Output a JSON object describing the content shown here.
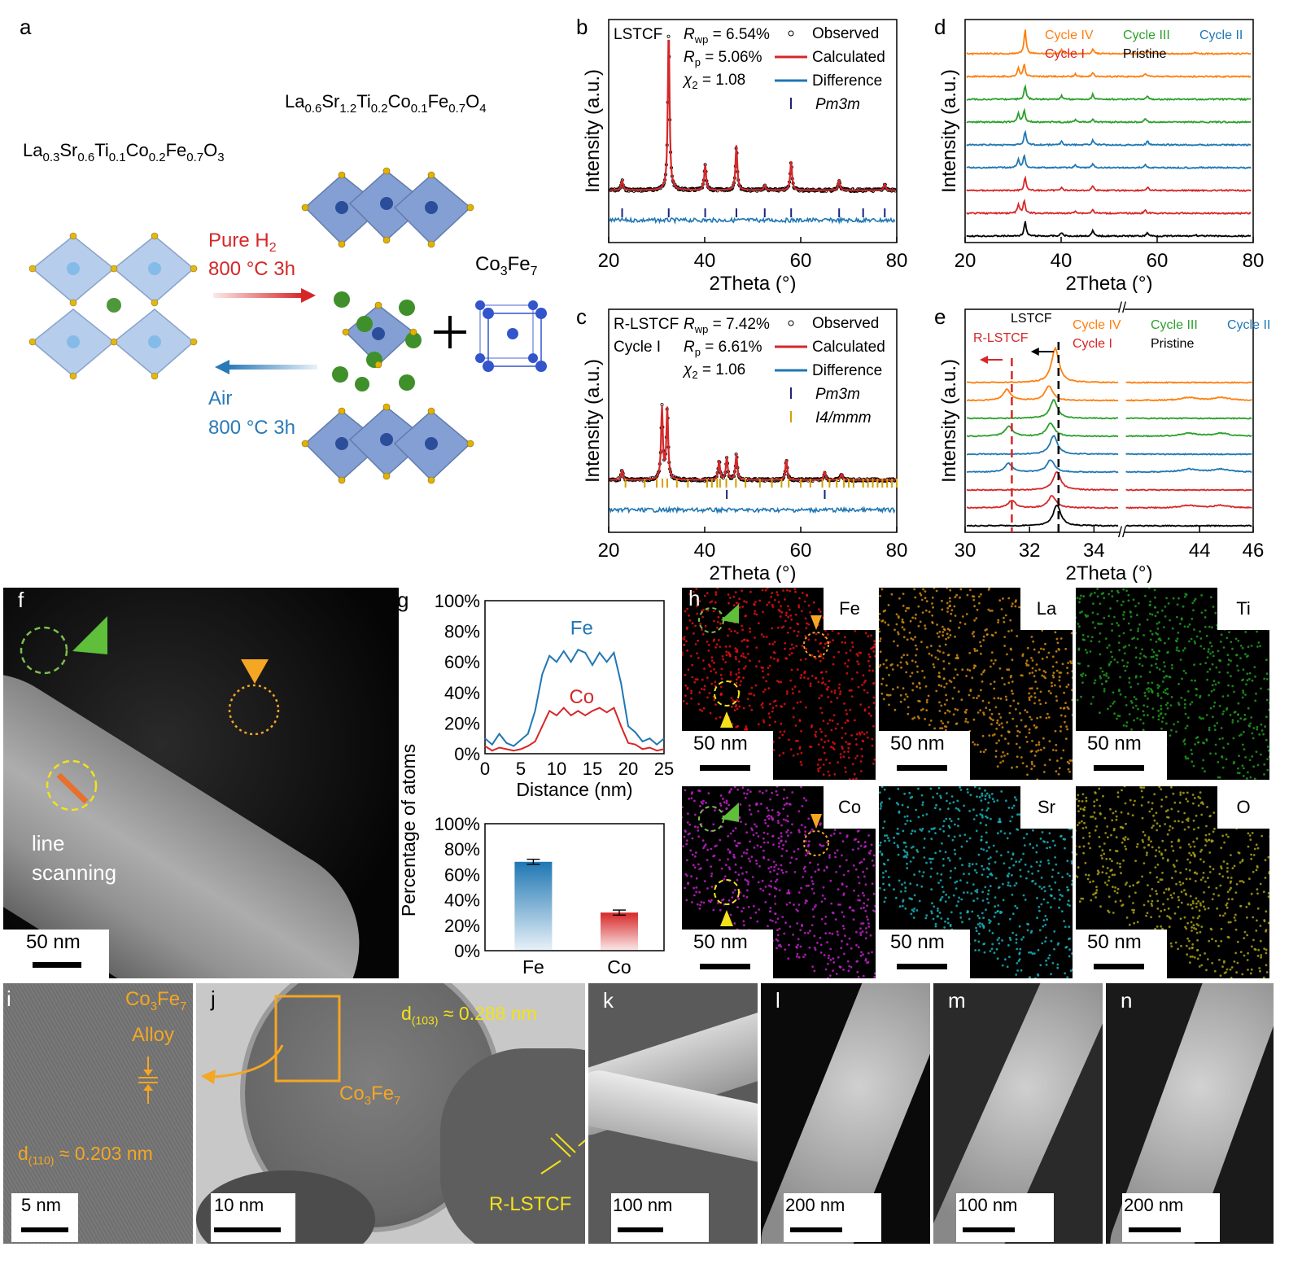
{
  "labels": {
    "a": "a",
    "b": "b",
    "c": "c",
    "d": "d",
    "e": "e",
    "f": "f",
    "g": "g",
    "h": "h",
    "i": "i",
    "j": "j",
    "k": "k",
    "l": "l",
    "m": "m",
    "n": "n"
  },
  "panel_a": {
    "formula_perovskite": [
      "La",
      "0.3",
      "Sr",
      "0.6",
      "Ti",
      "0.1",
      "Co",
      "0.2",
      "Fe",
      "0.7",
      "O",
      "3"
    ],
    "formula_rp": [
      "La",
      "0.6",
      "Sr",
      "1.2",
      "Ti",
      "0.2",
      "Co",
      "0.1",
      "Fe",
      "0.7",
      "O",
      "4"
    ],
    "alloy": [
      "Co",
      "3",
      "Fe",
      "7"
    ],
    "reduce_gas": "Pure H",
    "reduce_gas_sub": "2",
    "reduce_cond": "800 °C 3h",
    "oxid_gas": "Air",
    "oxid_cond": "800 °C 3h",
    "colors": {
      "reduce": "#d62728",
      "oxid": "#2a7ab8",
      "octa": "#5a7fc6",
      "b_site": "#3355cc",
      "a_site": "#3f8f2a",
      "oxygen": "#e2b200"
    }
  },
  "panel_b": {
    "sample": "LSTCF",
    "stats": [
      [
        "R",
        "wp",
        " = 6.54%"
      ],
      [
        "R",
        "p",
        " = 5.06%"
      ],
      [
        "χ",
        "2",
        " = 1.08"
      ]
    ],
    "legend": [
      "Observed",
      "Calculated",
      "Difference",
      "Pm3m"
    ],
    "xlabel": "2Theta (°)",
    "ylabel": "Intensity (a.u.)"
  },
  "panel_c": {
    "sample": "R-LSTCF",
    "sample2": "Cycle I",
    "stats": [
      [
        "R",
        "wp",
        " = 7.42%"
      ],
      [
        "R",
        "p",
        " = 6.61%"
      ],
      [
        "χ",
        "2",
        " = 1.06"
      ]
    ],
    "legend": [
      "Observed",
      "Calculated",
      "Difference",
      "Pm3m",
      "I4/mmm"
    ],
    "xlabel": "2Theta (°)",
    "ylabel": "Intensity (a.u.)"
  },
  "panel_d": {
    "legend": [
      "Cycle IV",
      "Cycle III",
      "Cycle II",
      "Cycle I",
      "Pristine"
    ],
    "xlabel": "2Theta (°)",
    "ylabel": "Intensity (a.u.)"
  },
  "panel_e": {
    "legend": [
      "Cycle IV",
      "Cycle III",
      "Cycle II",
      "Cycle I",
      "Pristine"
    ],
    "marker_left": "R-LSTCF",
    "marker_right": "LSTCF",
    "xlabel": "2Theta (°)",
    "ylabel": "Intensity (a.u.)"
  },
  "panel_f": {
    "line_scan": [
      "line",
      "scanning"
    ],
    "scale": "50 nm"
  },
  "panel_g": {
    "series_fe": "Fe",
    "series_co": "Co",
    "xlabel": "Distance (nm)",
    "ylabel": "Percentage of atoms"
  },
  "panel_h": {
    "elements": [
      "Fe",
      "La",
      "Ti",
      "Co",
      "Sr",
      "O"
    ],
    "scale": "50 nm"
  },
  "panel_i": {
    "title1": "Co",
    "title1_sub": "3",
    "title2": "Fe",
    "title2_sub": "7",
    "title3": "Alloy",
    "d": "d",
    "d_sub": "(110)",
    "d_val": " ≈ 0.203 nm",
    "scale": "5 nm"
  },
  "panel_j": {
    "d": "d",
    "d_sub": "(103)",
    "d_val": " ≈ 0.288 nm",
    "alloy": [
      "Co",
      "3",
      "Fe",
      "7"
    ],
    "sample": "R-LSTCF",
    "scale": "10 nm"
  },
  "panel_k": {
    "scale": "100 nm"
  },
  "panel_l": {
    "scale": "200 nm"
  },
  "panel_m": {
    "scale": "100 nm"
  },
  "panel_n": {
    "scale": "200 nm"
  },
  "chart_data": [
    {
      "id": "b",
      "type": "line",
      "title": "",
      "xlabel": "2Theta (°)",
      "ylabel": "Intensity (a.u.)",
      "xlim": [
        20,
        80
      ],
      "x_ticks": [
        20,
        40,
        60,
        80
      ],
      "peaks": [
        [
          22.8,
          0.06
        ],
        [
          32.5,
          1.0
        ],
        [
          40.1,
          0.16
        ],
        [
          46.6,
          0.28
        ],
        [
          52.5,
          0.03
        ],
        [
          58.0,
          0.18
        ],
        [
          68.0,
          0.06
        ],
        [
          77.5,
          0.04
        ]
      ],
      "tick_marks_pm3m": [
        22.8,
        32.5,
        40.1,
        46.6,
        52.5,
        58.0,
        68.0,
        73.0,
        77.5
      ],
      "series": [
        {
          "name": "Observed"
        },
        {
          "name": "Calculated"
        },
        {
          "name": "Difference"
        }
      ]
    },
    {
      "id": "c",
      "type": "line",
      "title": "",
      "xlabel": "2Theta (°)",
      "ylabel": "Intensity (a.u.)",
      "xlim": [
        20,
        80
      ],
      "x_ticks": [
        20,
        40,
        60,
        80
      ],
      "peaks": [
        [
          22.8,
          0.06
        ],
        [
          31.1,
          0.45
        ],
        [
          32.2,
          0.44
        ],
        [
          43.0,
          0.12
        ],
        [
          44.6,
          0.14
        ],
        [
          46.6,
          0.16
        ],
        [
          57.0,
          0.13
        ],
        [
          65.0,
          0.05
        ],
        [
          68.5,
          0.04
        ]
      ],
      "tick_marks_pm3m": [
        44.6,
        65.0
      ],
      "tick_marks_i4mmm": [
        23.5,
        27.5,
        30,
        31.2,
        32.2,
        34.2,
        36.5,
        40.5,
        41.5,
        42.6,
        43.2,
        44.5,
        46.5,
        48.5,
        51.5,
        54,
        56,
        57.5,
        60,
        62,
        64.5,
        66,
        67.5,
        69,
        70,
        71,
        73,
        74,
        75,
        76,
        77,
        78,
        79,
        80
      ],
      "series": [
        {
          "name": "Observed"
        },
        {
          "name": "Calculated"
        },
        {
          "name": "Difference"
        }
      ]
    },
    {
      "id": "d",
      "type": "line",
      "title": "",
      "xlabel": "2Theta (°)",
      "ylabel": "Intensity (a.u.)",
      "xlim": [
        20,
        80
      ],
      "x_ticks": [
        20,
        40,
        60,
        80
      ],
      "series": [
        {
          "name": "Pristine",
          "color": "#000000",
          "offset": 0,
          "peaks": [
            [
              32.5,
              0.6
            ],
            [
              40.1,
              0.15
            ],
            [
              46.6,
              0.22
            ],
            [
              58.0,
              0.14
            ],
            [
              68.0,
              0.05
            ]
          ]
        },
        {
          "name": "Cycle I",
          "color": "#d62728",
          "offset": 1,
          "peaks": [
            [
              31.1,
              0.35
            ],
            [
              32.3,
              0.5
            ],
            [
              43.0,
              0.1
            ],
            [
              46.6,
              0.14
            ],
            [
              57.5,
              0.12
            ]
          ]
        },
        {
          "name": "Cycle I",
          "color": "#d62728",
          "offset": 2,
          "peaks": [
            [
              32.5,
              0.55
            ],
            [
              40.1,
              0.15
            ],
            [
              46.6,
              0.2
            ],
            [
              58.0,
              0.14
            ]
          ]
        },
        {
          "name": "Cycle II",
          "color": "#1f77b4",
          "offset": 3,
          "peaks": [
            [
              31.1,
              0.35
            ],
            [
              32.3,
              0.5
            ],
            [
              43.0,
              0.1
            ],
            [
              46.6,
              0.14
            ],
            [
              57.5,
              0.12
            ]
          ]
        },
        {
          "name": "Cycle II",
          "color": "#1f77b4",
          "offset": 4,
          "peaks": [
            [
              32.5,
              0.55
            ],
            [
              40.1,
              0.15
            ],
            [
              46.6,
              0.2
            ],
            [
              58.0,
              0.14
            ]
          ]
        },
        {
          "name": "Cycle III",
          "color": "#2ca02c",
          "offset": 5,
          "peaks": [
            [
              31.1,
              0.35
            ],
            [
              32.3,
              0.5
            ],
            [
              43.0,
              0.1
            ],
            [
              46.6,
              0.14
            ],
            [
              57.5,
              0.12
            ]
          ]
        },
        {
          "name": "Cycle III",
          "color": "#2ca02c",
          "offset": 6,
          "peaks": [
            [
              32.5,
              0.55
            ],
            [
              40.1,
              0.15
            ],
            [
              46.6,
              0.2
            ],
            [
              58.0,
              0.14
            ]
          ]
        },
        {
          "name": "Cycle IV",
          "color": "#ff7f0e",
          "offset": 7,
          "peaks": [
            [
              31.1,
              0.35
            ],
            [
              32.3,
              0.5
            ],
            [
              43.0,
              0.1
            ],
            [
              46.6,
              0.14
            ],
            [
              57.5,
              0.12
            ]
          ]
        },
        {
          "name": "Cycle IV",
          "color": "#ff7f0e",
          "offset": 8,
          "peaks": [
            [
              32.5,
              1.0
            ],
            [
              40.1,
              0.15
            ],
            [
              46.6,
              0.2
            ],
            [
              58.0,
              0.14
            ],
            [
              68.0,
              0.05
            ]
          ]
        }
      ]
    },
    {
      "id": "e",
      "type": "line",
      "title": "",
      "xlabel": "2Theta (°)",
      "ylabel": "Intensity (a.u.)",
      "xlim_left": [
        30,
        34.8
      ],
      "xlim_right": [
        41.2,
        46
      ],
      "x_ticks_left": [
        30,
        32,
        34
      ],
      "x_ticks_right": [
        44,
        46
      ],
      "ref_line_left": 31.45,
      "ref_line_right": 32.9,
      "series": [
        {
          "name": "Pristine",
          "color": "#000000",
          "offset": 0,
          "peaks": [
            [
              32.85,
              0.85
            ]
          ]
        },
        {
          "name": "Cycle I",
          "color": "#d62728",
          "offset": 1,
          "peaks": [
            [
              31.45,
              0.3
            ],
            [
              32.7,
              0.5
            ],
            [
              43.6,
              0.1
            ],
            [
              44.8,
              0.1
            ]
          ]
        },
        {
          "name": "Cycle I",
          "color": "#d62728",
          "offset": 2,
          "peaks": [
            [
              32.85,
              0.75
            ]
          ]
        },
        {
          "name": "Cycle II",
          "color": "#1f77b4",
          "offset": 3,
          "peaks": [
            [
              31.35,
              0.35
            ],
            [
              32.65,
              0.5
            ],
            [
              43.6,
              0.12
            ],
            [
              44.8,
              0.12
            ]
          ]
        },
        {
          "name": "Cycle II",
          "color": "#1f77b4",
          "offset": 4,
          "peaks": [
            [
              32.75,
              0.75
            ]
          ]
        },
        {
          "name": "Cycle III",
          "color": "#2ca02c",
          "offset": 5,
          "peaks": [
            [
              31.35,
              0.4
            ],
            [
              32.65,
              0.55
            ],
            [
              43.6,
              0.12
            ],
            [
              44.8,
              0.12
            ]
          ]
        },
        {
          "name": "Cycle III",
          "color": "#2ca02c",
          "offset": 6,
          "peaks": [
            [
              32.75,
              0.75
            ]
          ]
        },
        {
          "name": "Cycle IV",
          "color": "#ff7f0e",
          "offset": 7,
          "peaks": [
            [
              31.3,
              0.45
            ],
            [
              32.6,
              0.6
            ],
            [
              43.6,
              0.12
            ],
            [
              44.8,
              0.12
            ]
          ]
        },
        {
          "name": "Cycle IV",
          "color": "#ff7f0e",
          "offset": 8,
          "peaks": [
            [
              32.8,
              1.4
            ]
          ]
        }
      ]
    },
    {
      "id": "g-top",
      "type": "line",
      "xlabel": "Distance (nm)",
      "ylabel": "Percentage of atoms",
      "xlim": [
        0,
        25
      ],
      "ylim": [
        0,
        100
      ],
      "x_ticks": [
        0,
        5,
        10,
        15,
        20,
        25
      ],
      "y_ticks": [
        "0%",
        "20%",
        "40%",
        "60%",
        "80%",
        "100%"
      ],
      "x": [
        0,
        1,
        2,
        3,
        4,
        5,
        6,
        7,
        8,
        9,
        10,
        11,
        12,
        13,
        14,
        15,
        16,
        17,
        18,
        19,
        20,
        21,
        22,
        23,
        24,
        25
      ],
      "series": [
        {
          "name": "Fe",
          "color": "#1f77b4",
          "values": [
            10,
            6,
            13,
            7,
            5,
            9,
            13,
            28,
            52,
            64,
            60,
            67,
            60,
            68,
            66,
            58,
            66,
            60,
            66,
            46,
            18,
            14,
            8,
            10,
            6,
            10
          ]
        },
        {
          "name": "Co",
          "color": "#d62728",
          "values": [
            5,
            2,
            4,
            3,
            2,
            3,
            5,
            8,
            18,
            28,
            25,
            30,
            25,
            28,
            25,
            28,
            30,
            27,
            30,
            18,
            7,
            6,
            3,
            4,
            2,
            3
          ]
        }
      ]
    },
    {
      "id": "g-bottom",
      "type": "bar",
      "ylabel": "Percentage of atoms",
      "ylim": [
        0,
        100
      ],
      "y_ticks": [
        "0%",
        "20%",
        "40%",
        "60%",
        "80%",
        "100%"
      ],
      "categories": [
        "Fe",
        "Co"
      ],
      "values": [
        70,
        30
      ],
      "errors": [
        2,
        2
      ],
      "colors": [
        "#1f77b4",
        "#d62728"
      ]
    }
  ]
}
